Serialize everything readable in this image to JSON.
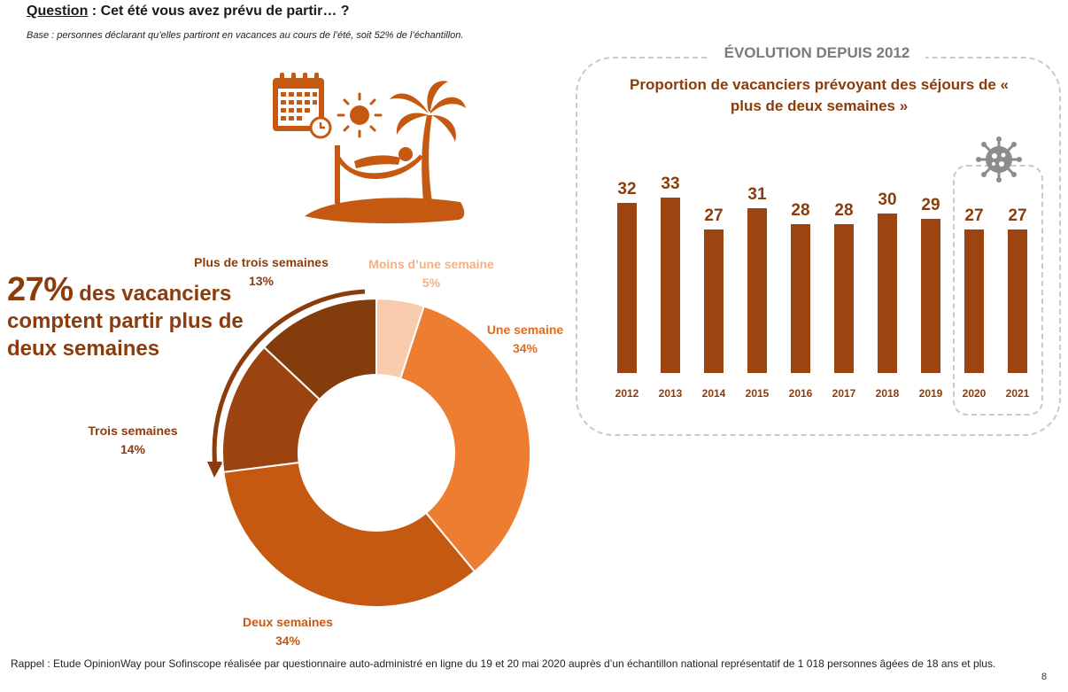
{
  "question": {
    "label": "Question",
    "text": " : Cet été vous avez prévu de partir… ?"
  },
  "base": "Base : personnes déclarant qu’elles partiront en vacances au cours de l’été, soit 52% de l’échantillon.",
  "headline": {
    "percent": "27%",
    "text_inline": " des vacanciers",
    "text_rest": "comptent partir plus de deux semaines"
  },
  "evolution": {
    "title": "ÉVOLUTION DEPUIS 2012",
    "subtitle": "Proportion de vacanciers prévoyant des séjours de « plus de deux semaines »"
  },
  "footer": {
    "note": "Rappel : Etude OpinionWay pour Sofinscope réalisée par questionnaire auto-administré en ligne du 19 et 20 mai 2020 auprès d’un échantillon national représentatif de 1 018 personnes âgées de 18 ans et plus.",
    "page": "8"
  },
  "icons": {
    "illustration": [
      "calendar-clock-icon",
      "sun-icon",
      "palm-tree-icon",
      "hammock-person-icon",
      "island-icon"
    ],
    "covid": "virus-icon"
  },
  "colors": {
    "dark_brown": "#8a3c0d",
    "medium_brown": "#c65911",
    "orange": "#ed7d31",
    "light_peach": "#f8cbad",
    "gray": "#7a7a7a"
  },
  "chart_data": [
    {
      "type": "pie",
      "donut": true,
      "categories": [
        "Moins d’une semaine",
        "Une semaine",
        "Deux semaines",
        "Trois semaines",
        "Plus de trois semaines"
      ],
      "values": [
        5,
        34,
        34,
        14,
        13
      ],
      "labels": [
        "5%",
        "34%",
        "34%",
        "14%",
        "13%"
      ],
      "colors": [
        "#f8cbad",
        "#ed7d31",
        "#c65911",
        "#8a3c0d",
        "#8a3c0d"
      ],
      "slice_colors": [
        "#f8cbad",
        "#ed7d31",
        "#c65911",
        "#9b4410",
        "#843c0c"
      ]
    },
    {
      "type": "bar",
      "title": "Proportion de vacanciers prévoyant des séjours de « plus de deux semaines »",
      "categories": [
        "2012",
        "2013",
        "2014",
        "2015",
        "2016",
        "2017",
        "2018",
        "2019",
        "2020",
        "2021"
      ],
      "values": [
        32,
        33,
        27,
        31,
        28,
        28,
        30,
        29,
        27,
        27
      ],
      "color": "#9c4510",
      "highlight_categories": [
        "2020",
        "2021"
      ]
    }
  ]
}
